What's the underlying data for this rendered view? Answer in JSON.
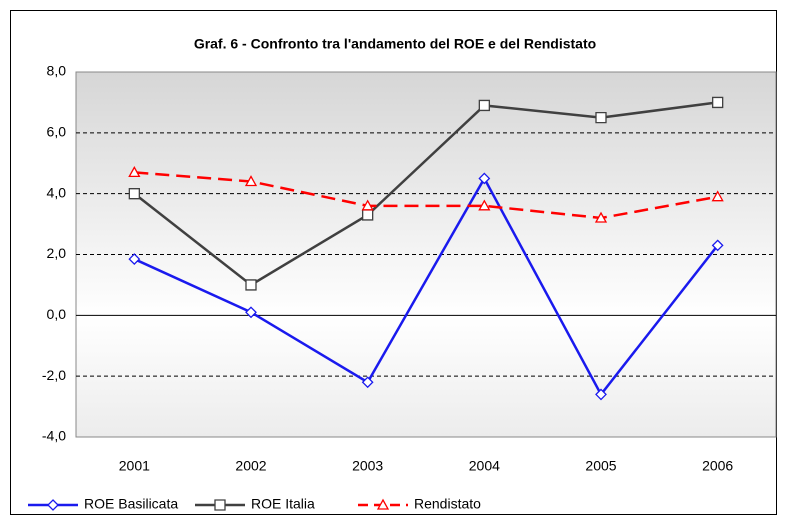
{
  "chart_data": {
    "type": "line",
    "title": "Graf. 6 - Confronto tra l'andamento del ROE e del Rendistato",
    "categories": [
      "2001",
      "2002",
      "2003",
      "2004",
      "2005",
      "2006"
    ],
    "series": [
      {
        "name": "ROE Basilicata",
        "color": "#1a1aee",
        "marker": "diamond",
        "dashed": false,
        "values": [
          1.85,
          0.1,
          -2.2,
          4.5,
          -2.6,
          2.3
        ]
      },
      {
        "name": "ROE Italia",
        "color": "#404040",
        "marker": "square",
        "dashed": false,
        "values": [
          4.0,
          1.0,
          3.3,
          6.9,
          6.5,
          7.0
        ]
      },
      {
        "name": "Rendistato",
        "color": "#ff0000",
        "marker": "triangle",
        "dashed": true,
        "values": [
          4.7,
          4.4,
          3.6,
          3.6,
          3.2,
          3.9
        ]
      }
    ],
    "ylim": [
      -4,
      8
    ],
    "yticks": [
      {
        "value": -4,
        "label": "-4,0"
      },
      {
        "value": -2,
        "label": "-2,0"
      },
      {
        "value": 0,
        "label": "0,0"
      },
      {
        "value": 2,
        "label": "2,0"
      },
      {
        "value": 4,
        "label": "4,0"
      },
      {
        "value": 6,
        "label": "6,0"
      },
      {
        "value": 8,
        "label": "8,0"
      }
    ],
    "grid": true,
    "legend": "bottom"
  }
}
